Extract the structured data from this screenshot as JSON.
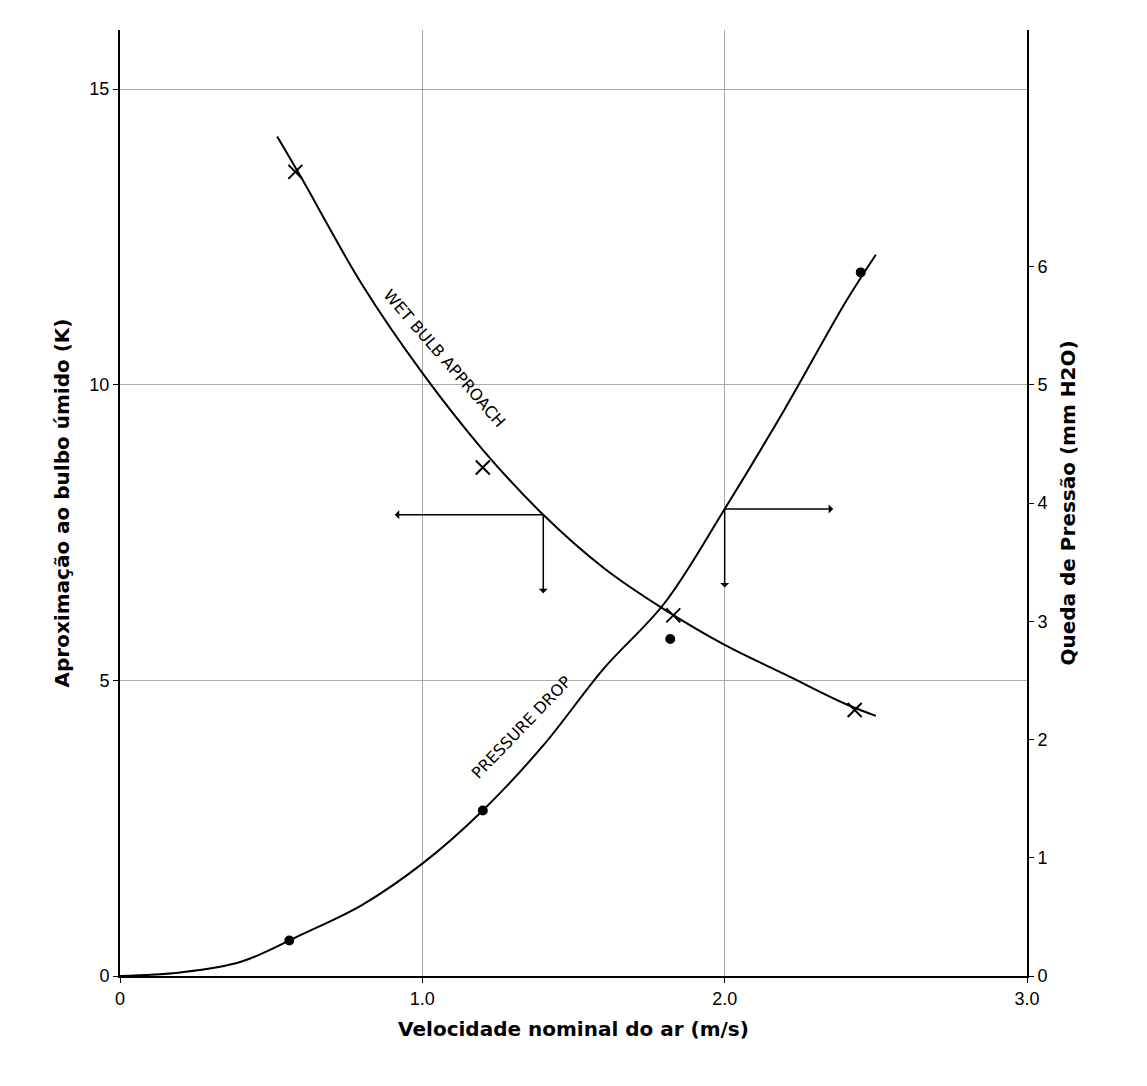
{
  "chart_data": {
    "type": "line",
    "xlabel": "Velocidade nominal do ar (m/s)",
    "ylabel": "Aproximação ao bulbo úmido (K)",
    "y2label": "Queda de Pressão (mm H2O)",
    "xlim": [
      0,
      3
    ],
    "xticks": [
      0,
      {
        "value": 1,
        "label": "1.0"
      },
      {
        "value": 2,
        "label": "2.0"
      },
      {
        "value": 3,
        "label": "3.0"
      }
    ],
    "ylim": [
      0,
      16
    ],
    "yticks": [
      0,
      5,
      10,
      15
    ],
    "y2lim": [
      0,
      8
    ],
    "y2ticks": [
      0,
      1,
      2,
      3,
      4,
      5,
      6
    ],
    "grid": true,
    "series": [
      {
        "name": "WET BULB APPROACH",
        "type": "line",
        "line_style": "solid",
        "color": "#000000",
        "x": [
          0.52,
          0.6,
          0.8,
          1.0,
          1.2,
          1.4,
          1.6,
          1.8,
          2.0,
          2.2,
          2.4,
          2.5
        ],
        "values": [
          14.2,
          13.5,
          11.7,
          10.2,
          8.9,
          7.8,
          6.9,
          6.2,
          5.6,
          5.1,
          4.6,
          4.4
        ]
      },
      {
        "type": "scatter",
        "marker": "x",
        "color": "#000000",
        "x": [
          0.58,
          1.2,
          1.83,
          2.43
        ],
        "values": [
          13.6,
          8.6,
          6.1,
          4.5
        ]
      },
      {
        "name": "PRESSURE DROP",
        "type": "line",
        "line_style": "solid",
        "color": "#000000",
        "axis": "y2",
        "x": [
          0,
          0.2,
          0.4,
          0.6,
          0.8,
          1.0,
          1.2,
          1.4,
          1.6,
          1.8,
          2.0,
          2.2,
          2.4,
          2.5
        ],
        "values": [
          0,
          0.03,
          0.12,
          0.35,
          0.6,
          0.95,
          1.4,
          1.95,
          2.6,
          3.15,
          3.95,
          4.8,
          5.7,
          6.1
        ]
      },
      {
        "type": "scatter",
        "marker": "circle",
        "color": "#000000",
        "axis": "y2",
        "x": [
          0.56,
          1.2,
          1.82,
          2.45
        ],
        "values": [
          0.3,
          1.4,
          2.85,
          5.95
        ]
      }
    ]
  }
}
